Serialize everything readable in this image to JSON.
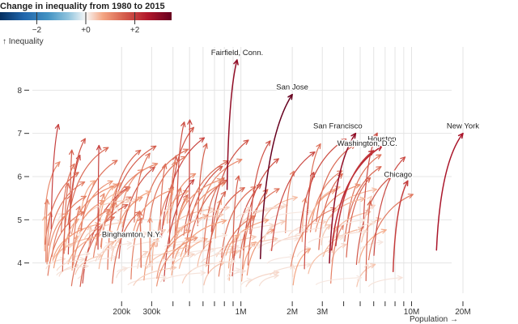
{
  "chart_data": {
    "type": "arrow-scatter",
    "legend": {
      "title": "Change in inequality from 1980 to 2015",
      "ticks": [
        {
          "value": -2,
          "label": "−2"
        },
        {
          "value": 0,
          "label": "+0"
        },
        {
          "value": 2,
          "label": "+2"
        }
      ],
      "domain": [
        -3.5,
        3.5
      ]
    },
    "y_axis": {
      "label": "↑ Inequality",
      "ticks": [
        {
          "value": 4,
          "label": "4"
        },
        {
          "value": 5,
          "label": "5"
        },
        {
          "value": 6,
          "label": "6"
        },
        {
          "value": 7,
          "label": "7"
        },
        {
          "value": 8,
          "label": "8"
        }
      ],
      "range": [
        3.3,
        9.0
      ]
    },
    "x_axis": {
      "label": "Population →",
      "scale": "log",
      "range": [
        60000,
        26000000
      ],
      "labeled_ticks": [
        {
          "value": 200000,
          "label": "200k"
        },
        {
          "value": 300000,
          "label": "300k"
        },
        {
          "value": 1000000,
          "label": "1M"
        },
        {
          "value": 2000000,
          "label": "2M"
        },
        {
          "value": 3000000,
          "label": "3M"
        },
        {
          "value": 10000000,
          "label": "10M"
        },
        {
          "value": 20000000,
          "label": "20M"
        }
      ],
      "minor_ticks": [
        400000,
        500000,
        600000,
        700000,
        800000,
        900000,
        4000000,
        5000000,
        6000000,
        7000000,
        8000000,
        9000000
      ]
    },
    "labeled_cities": [
      {
        "name": "New York",
        "pop1980": 14000000,
        "ineq1980": 4.3,
        "pop2015": 20000000,
        "ineq2015": 7.0,
        "change": 2.7
      },
      {
        "name": "Houston",
        "pop1980": 3400000,
        "ineq1980": 4.3,
        "pop2015": 6700000,
        "ineq2015": 6.7,
        "change": 2.4
      },
      {
        "name": "San Francisco",
        "pop1980": 3300000,
        "ineq1980": 4.0,
        "pop2015": 4700000,
        "ineq2015": 7.0,
        "change": 3.0
      },
      {
        "name": "Washington, D.C.",
        "pop1980": 3600000,
        "ineq1980": 4.4,
        "pop2015": 6000000,
        "ineq2015": 6.6,
        "change": 2.2
      },
      {
        "name": "Chicago",
        "pop1980": 7800000,
        "ineq1980": 3.8,
        "pop2015": 9500000,
        "ineq2015": 5.9,
        "change": 2.1
      },
      {
        "name": "San Jose",
        "pop1980": 1300000,
        "ineq1980": 4.1,
        "pop2015": 2000000,
        "ineq2015": 7.9,
        "change": 3.8
      },
      {
        "name": "Fairfield, Conn.",
        "pop1980": 830000,
        "ineq1980": 5.7,
        "pop2015": 950000,
        "ineq2015": 8.7,
        "change": 3.0
      },
      {
        "name": "Binghamton, N.Y.",
        "pop1980": 260000,
        "ineq1980": 3.9,
        "pop2015": 255000,
        "ineq2015": 5.2,
        "change": 1.3
      }
    ]
  }
}
